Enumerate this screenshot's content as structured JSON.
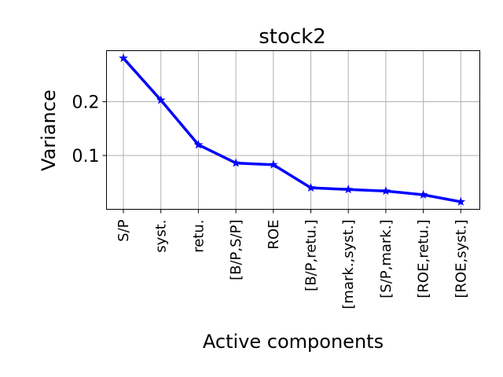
{
  "chart_data": {
    "type": "line",
    "title": "stock2",
    "xlabel": "Active components",
    "ylabel": "Variance",
    "categories": [
      "S/P",
      "syst.",
      "retu.",
      "[B/P,S/P]",
      "ROE",
      "[B/P,retu.]",
      "[mark.,syst.]",
      "[S/P,mark.]",
      "[ROE,retu.]",
      "[ROE,syst.]"
    ],
    "series": [
      {
        "values": [
          0.281,
          0.203,
          0.12,
          0.086,
          0.083,
          0.04,
          0.037,
          0.034,
          0.027,
          0.014
        ]
      }
    ],
    "yticks": [
      0.1,
      0.2
    ],
    "ytick_labels": [
      "0.1",
      "0.2"
    ],
    "ylim": [
      0.0,
      0.295
    ],
    "grid": true,
    "line_color": "#0000ff",
    "marker": "star"
  }
}
